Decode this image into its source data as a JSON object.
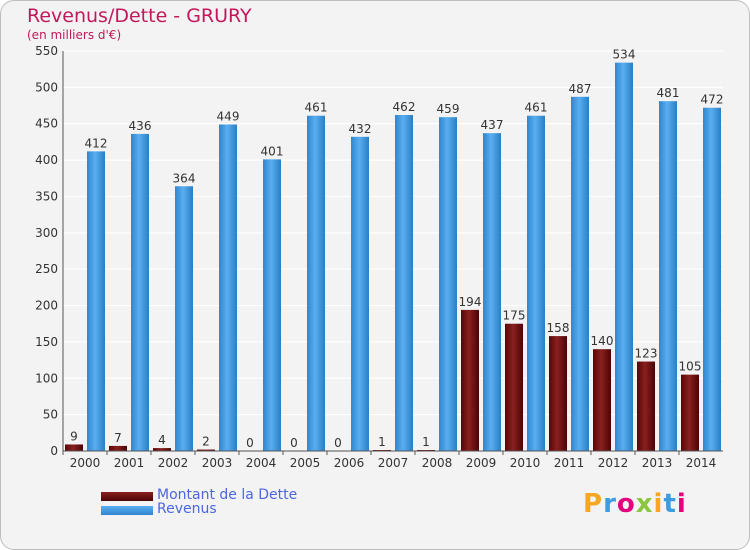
{
  "title": "Revenus/Dette - GRURY",
  "subtitle": "(en milliers d'€)",
  "logo_text": "Proxiti",
  "chart_data": {
    "type": "bar",
    "title": "Revenus/Dette - GRURY",
    "subtitle": "(en milliers d'€)",
    "categories": [
      "2000",
      "2001",
      "2002",
      "2003",
      "2004",
      "2005",
      "2006",
      "2007",
      "2008",
      "2009",
      "2010",
      "2011",
      "2012",
      "2013",
      "2014"
    ],
    "series": [
      {
        "name": "Montant de la Dette",
        "color": "#7a1010",
        "values": [
          9,
          7,
          4,
          2,
          0,
          0,
          0,
          1,
          1,
          194,
          175,
          158,
          140,
          123,
          105
        ]
      },
      {
        "name": "Revenus",
        "color": "#3d9be0",
        "values": [
          412,
          436,
          364,
          449,
          401,
          461,
          432,
          462,
          459,
          437,
          461,
          487,
          534,
          481,
          472
        ]
      }
    ],
    "ylim": [
      0,
      550
    ],
    "yticks": [
      0,
      50,
      100,
      150,
      200,
      250,
      300,
      350,
      400,
      450,
      500,
      550
    ],
    "grid": true,
    "legend_position": "bottom-left"
  }
}
